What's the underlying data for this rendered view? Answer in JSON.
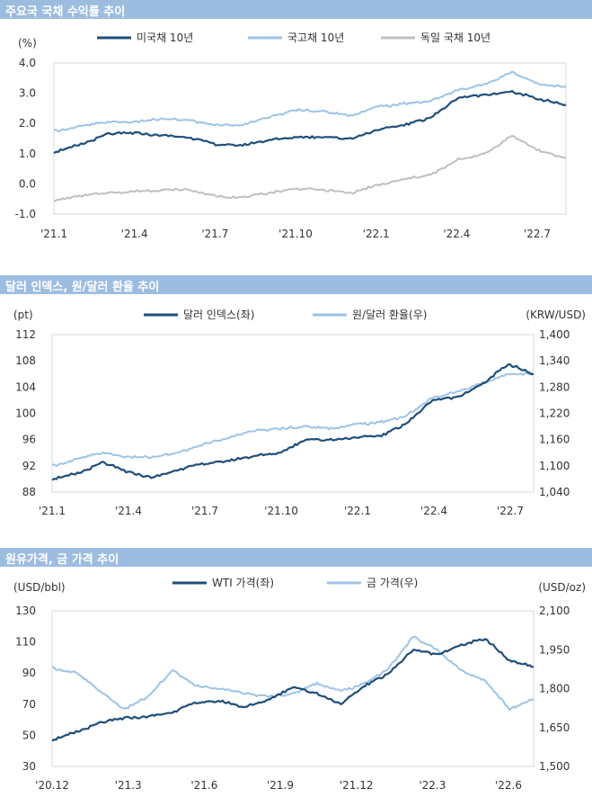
{
  "colors": {
    "dark": "#1f4e79",
    "light": "#9dc3e6",
    "gray": "#bfbfbf",
    "title_bg": "#9dbde0"
  },
  "charts": [
    {
      "title": "주요국 국채 수익률 추이",
      "chart_data": {
        "type": "line",
        "unit_left": "(%)",
        "ylim": [
          -1.0,
          4.0
        ],
        "yticks": [
          "4.0",
          "3.0",
          "2.0",
          "1.0",
          "0.0",
          "-1.0"
        ],
        "xticks": [
          "'21.1",
          "'21.4",
          "'21.7",
          "'21.10",
          "'22.1",
          "'22.4",
          "'22.7"
        ],
        "x_months": [
          "2021-01",
          "2021-02",
          "2021-03",
          "2021-04",
          "2021-05",
          "2021-06",
          "2021-07",
          "2021-08",
          "2021-09",
          "2021-10",
          "2021-11",
          "2021-12",
          "2022-01",
          "2022-02",
          "2022-03",
          "2022-04",
          "2022-05",
          "2022-06",
          "2022-07",
          "2022-08"
        ],
        "series": [
          {
            "name": "미국채 10년",
            "color": "dark",
            "values": [
              1.05,
              1.3,
              1.65,
              1.68,
              1.6,
              1.55,
              1.3,
              1.28,
              1.45,
              1.55,
              1.55,
              1.5,
              1.78,
              1.95,
              2.2,
              2.85,
              2.95,
              3.05,
              2.8,
              2.62
            ]
          },
          {
            "name": "국고채 10년",
            "color": "light",
            "values": [
              1.75,
              1.9,
              2.05,
              2.05,
              2.15,
              2.1,
              1.95,
              1.95,
              2.2,
              2.45,
              2.4,
              2.25,
              2.55,
              2.65,
              2.75,
              3.1,
              3.3,
              3.7,
              3.3,
              3.2
            ]
          },
          {
            "name": "독일 국채 10년",
            "color": "gray",
            "values": [
              -0.55,
              -0.4,
              -0.3,
              -0.25,
              -0.2,
              -0.2,
              -0.4,
              -0.45,
              -0.3,
              -0.15,
              -0.2,
              -0.3,
              -0.05,
              0.15,
              0.3,
              0.8,
              1.0,
              1.6,
              1.1,
              0.85
            ]
          }
        ]
      }
    },
    {
      "title": "달러 인덱스, 원/달러 환율 추이",
      "chart_data": {
        "type": "line",
        "unit_left": "(pt)",
        "unit_right": "(KRW/USD)",
        "ylim_left": [
          88,
          112
        ],
        "ylim_right": [
          1040,
          1400
        ],
        "yticks_left": [
          "112",
          "108",
          "104",
          "100",
          "96",
          "92",
          "88"
        ],
        "yticks_right": [
          "1,400",
          "1,340",
          "1,280",
          "1,220",
          "1,160",
          "1,100",
          "1,040"
        ],
        "xticks": [
          "'21.1",
          "'21.4",
          "'21.7",
          "'21.10",
          "'22.1",
          "'22.4",
          "'22.7"
        ],
        "x_months": [
          "2021-01",
          "2021-02",
          "2021-03",
          "2021-04",
          "2021-05",
          "2021-06",
          "2021-07",
          "2021-08",
          "2021-09",
          "2021-10",
          "2021-11",
          "2021-12",
          "2022-01",
          "2022-02",
          "2022-03",
          "2022-04",
          "2022-05",
          "2022-06",
          "2022-07",
          "2022-08"
        ],
        "series": [
          {
            "name": "달러 인덱스(좌)",
            "color": "dark",
            "axis": "left",
            "values": [
              90.0,
              90.8,
              92.5,
              91.0,
              90.2,
              91.5,
              92.3,
              92.8,
              93.5,
              94.0,
              96.0,
              96.0,
              96.3,
              96.6,
              98.5,
              102.0,
              102.5,
              104.5,
              107.5,
              106.0
            ]
          },
          {
            "name": "원/달러 환율(우)",
            "color": "light",
            "axis": "right",
            "values": [
              1100,
              1115,
              1130,
              1120,
              1120,
              1130,
              1150,
              1165,
              1180,
              1185,
              1190,
              1185,
              1195,
              1200,
              1215,
              1255,
              1270,
              1290,
              1310,
              1310
            ]
          }
        ]
      }
    },
    {
      "title": "원유가격, 금 가격 추이",
      "chart_data": {
        "type": "line",
        "unit_left": "(USD/bbl)",
        "unit_right": "(USD/oz)",
        "ylim_left": [
          30,
          130
        ],
        "ylim_right": [
          1500,
          2100
        ],
        "yticks_left": [
          "130",
          "110",
          "90",
          "70",
          "50",
          "30"
        ],
        "yticks_right": [
          "2,100",
          "1,950",
          "1,800",
          "1,650",
          "1,500"
        ],
        "xticks": [
          "'20.12",
          "'21.3",
          "'21.6",
          "'21.9",
          "'21.12",
          "'22.3",
          "'22.6"
        ],
        "x_months": [
          "2020-12",
          "2021-01",
          "2021-02",
          "2021-03",
          "2021-04",
          "2021-05",
          "2021-06",
          "2021-07",
          "2021-08",
          "2021-09",
          "2021-10",
          "2021-11",
          "2021-12",
          "2022-01",
          "2022-02",
          "2022-03",
          "2022-04",
          "2022-05",
          "2022-06",
          "2022-07",
          "2022-08"
        ],
        "series": [
          {
            "name": "WTI 가격(좌)",
            "color": "dark",
            "axis": "left",
            "values": [
              47,
              52,
              58,
              61,
              62,
              65,
              71,
              72,
              68,
              73,
              81,
              77,
              70,
              82,
              90,
              105,
              102,
              108,
              112,
              98,
              94
            ]
          },
          {
            "name": "금 가격(우)",
            "color": "light",
            "axis": "right",
            "values": [
              1880,
              1860,
              1790,
              1720,
              1770,
              1870,
              1810,
              1800,
              1780,
              1770,
              1780,
              1820,
              1790,
              1820,
              1880,
              2000,
              1950,
              1870,
              1830,
              1720,
              1760
            ]
          }
        ]
      }
    }
  ]
}
